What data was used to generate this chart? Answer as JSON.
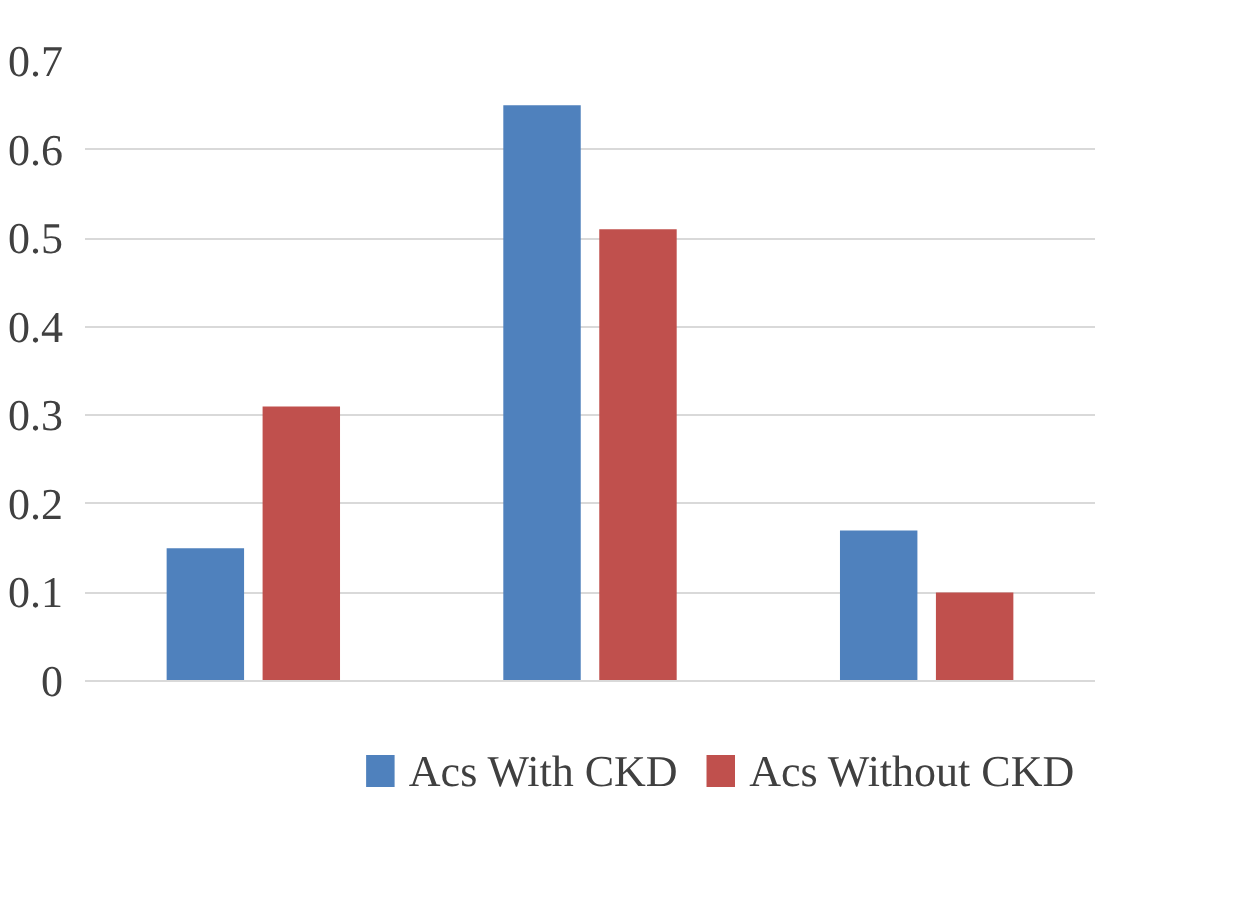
{
  "chart_data": {
    "type": "bar",
    "categories": [
      null,
      null,
      null
    ],
    "series": [
      {
        "name": "Acs With CKD",
        "color": "#4f81bd",
        "values": [
          0.15,
          0.65,
          0.17
        ]
      },
      {
        "name": "Acs Without CKD",
        "color": "#c0504d",
        "values": [
          0.31,
          0.51,
          0.1
        ]
      }
    ],
    "ylim": [
      0,
      0.7
    ],
    "yticks": [
      0,
      0.1,
      0.2,
      0.3,
      0.4,
      0.5,
      0.6,
      0.7
    ],
    "grid": "y",
    "legend": "bottom"
  }
}
